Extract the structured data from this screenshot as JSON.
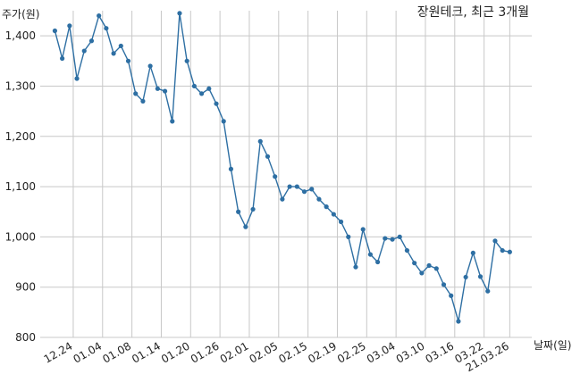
{
  "chart_data": {
    "type": "line",
    "title": "장원테크, 최근 3개월",
    "ylabel": "주가(원)",
    "xlabel": "날짜(일)",
    "ylim": [
      800,
      1450
    ],
    "yticks": [
      800,
      900,
      1000,
      1100,
      1200,
      1300,
      1400
    ],
    "ytick_labels": [
      "800",
      "900",
      "1,000",
      "1,100",
      "1,200",
      "1,300",
      "1,400"
    ],
    "xtick_labels": [
      "12.24",
      "01.04",
      "01.08",
      "01.14",
      "01.20",
      "01.26",
      "02.01",
      "02.05",
      "02.15",
      "02.19",
      "02.25",
      "03.04",
      "03.10",
      "03.16",
      "03.22",
      "21.03.26"
    ],
    "xtick_positions": [
      2.5,
      6.5,
      10.5,
      14.5,
      18.5,
      22.5,
      26.5,
      30.5,
      34.5,
      38.5,
      42.5,
      46.5,
      50.5,
      54.5,
      58.5,
      62
    ],
    "xlim": [
      -2,
      65
    ],
    "grid": true,
    "line_color": "#2e6fa3",
    "series": [
      {
        "values": [
          1410,
          1355,
          1420,
          1315,
          1370,
          1390,
          1440,
          1415,
          1365,
          1380,
          1350,
          1285,
          1270,
          1340,
          1295,
          1290,
          1230,
          1445,
          1350,
          1300,
          1285,
          1295,
          1265,
          1230,
          1135,
          1050,
          1020,
          1055,
          1190,
          1160,
          1120,
          1075,
          1100,
          1100,
          1090,
          1095,
          1075,
          1060,
          1045,
          1030,
          1000,
          940,
          1015,
          965,
          950,
          997,
          995,
          1000,
          973,
          948,
          928,
          943,
          937,
          905,
          883,
          832,
          920,
          968,
          921,
          892,
          992,
          973,
          970
        ]
      }
    ]
  }
}
